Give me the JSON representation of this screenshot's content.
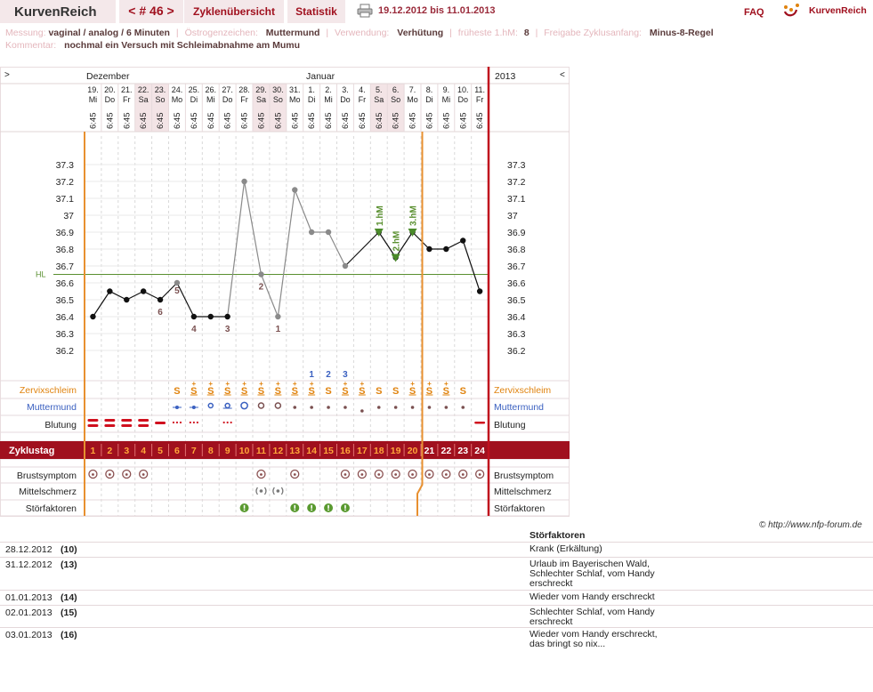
{
  "header": {
    "app_name": "KurvenReich",
    "cycle_nav": "< # 46 >",
    "tab_cycles": "Zyklenübersicht",
    "tab_stats": "Statistik",
    "date_range": "19.12.2012 bis 11.01.2013",
    "faq": "FAQ",
    "brand": "KurvenReich"
  },
  "info": {
    "measure_label": "Messung:",
    "measure_value": "vaginal / analog / 6 Minuten",
    "estrogen_label": "Östrogenzeichen:",
    "estrogen_value": "Muttermund",
    "use_label": "Verwendung:",
    "use_value": "Verhütung",
    "earliest_label": "früheste 1.hM:",
    "earliest_value": "8",
    "release_label": "Freigabe Zyklusanfang:",
    "release_value": "Minus-8-Regel",
    "comment_label": "Kommentar:",
    "comment_value": "nochmal ein Versuch mit Schleimabnahme am Mumu"
  },
  "chart_data": {
    "type": "line",
    "title": "",
    "month_labels": {
      "left_corner": ">",
      "dec": "Dezember",
      "jan": "Januar",
      "year": "2013",
      "right_corner": "<"
    },
    "days": [
      {
        "d": "19.",
        "w": "Mi"
      },
      {
        "d": "20.",
        "w": "Do"
      },
      {
        "d": "21.",
        "w": "Fr"
      },
      {
        "d": "22.",
        "w": "Sa"
      },
      {
        "d": "23.",
        "w": "So"
      },
      {
        "d": "24.",
        "w": "Mo"
      },
      {
        "d": "25.",
        "w": "Di"
      },
      {
        "d": "26.",
        "w": "Mi"
      },
      {
        "d": "27.",
        "w": "Do"
      },
      {
        "d": "28.",
        "w": "Fr"
      },
      {
        "d": "29.",
        "w": "Sa"
      },
      {
        "d": "30.",
        "w": "So"
      },
      {
        "d": "31.",
        "w": "Mo"
      },
      {
        "d": "1.",
        "w": "Di"
      },
      {
        "d": "2.",
        "w": "Mi"
      },
      {
        "d": "3.",
        "w": "Do"
      },
      {
        "d": "4.",
        "w": "Fr"
      },
      {
        "d": "5.",
        "w": "Sa"
      },
      {
        "d": "6.",
        "w": "So"
      },
      {
        "d": "7.",
        "w": "Mo"
      },
      {
        "d": "8.",
        "w": "Di"
      },
      {
        "d": "9.",
        "w": "Mi"
      },
      {
        "d": "10.",
        "w": "Do"
      },
      {
        "d": "11.",
        "w": "Fr"
      }
    ],
    "weekend_indices": [
      3,
      4,
      10,
      11,
      17,
      18
    ],
    "times": [
      "6:45",
      "6:45",
      "6:45",
      "6:45",
      "6:45",
      "6:45",
      "6:45",
      "6:45",
      "6:45",
      "6:45",
      "6:45",
      "6:45",
      "6:45",
      "6:45",
      "6:45",
      "6:45",
      "6:45",
      "6:45",
      "6:45",
      "6:45",
      "6:45",
      "6:45",
      "6:45",
      "6:45"
    ],
    "temps": [
      36.4,
      36.55,
      36.5,
      36.55,
      36.5,
      36.6,
      36.4,
      36.4,
      36.4,
      37.2,
      36.65,
      36.4,
      37.15,
      36.9,
      36.9,
      36.7,
      null,
      36.9,
      36.75,
      36.9,
      36.8,
      36.8,
      36.85,
      36.55
    ],
    "ylim": [
      36.1,
      37.4
    ],
    "yticks": [
      "37.3",
      "37.2",
      "37.1",
      "37",
      "36.9",
      "36.8",
      "36.7",
      "36.6",
      "36.5",
      "36.4",
      "36.3",
      "36.2"
    ],
    "hl_value": 36.65,
    "hl_label": "HL",
    "low_labels": [
      {
        "i": 5,
        "t": "5"
      },
      {
        "i": 4,
        "t": "6"
      },
      {
        "i": 6,
        "t": "4"
      },
      {
        "i": 8,
        "t": "3"
      },
      {
        "i": 10,
        "t": "2"
      },
      {
        "i": 11,
        "t": "1"
      }
    ],
    "high_labels": [
      {
        "i": 17,
        "t": "1.hM"
      },
      {
        "i": 18,
        "t": "2.hM"
      },
      {
        "i": 19,
        "t": "3.hM"
      }
    ],
    "count_labels": [
      {
        "i": 13,
        "t": "1"
      },
      {
        "i": 14,
        "t": "2"
      },
      {
        "i": 15,
        "t": "3"
      }
    ],
    "rows": {
      "cervix": "Zervixschleim",
      "cervix_pos": "Muttermund",
      "bleeding": "Blutung",
      "cycle_day": "Zyklustag",
      "breast": "Brustsymptom",
      "midpain": "Mittelschmerz",
      "disturb": "Störfaktoren"
    },
    "cycle_days": [
      "1",
      "2",
      "3",
      "4",
      "5",
      "6",
      "7",
      "8",
      "9",
      "10",
      "11",
      "12",
      "13",
      "14",
      "15",
      "16",
      "17",
      "18",
      "19",
      "20",
      "21",
      "22",
      "23",
      "24"
    ],
    "mucus": [
      "",
      "",
      "",
      "",
      "",
      "S",
      "S+",
      "S+",
      "S+",
      "S+",
      "S+",
      "S+",
      "S+",
      "S+",
      "S",
      "S+",
      "S+",
      "S",
      "S",
      "S+",
      "S+",
      "S+",
      "S",
      ""
    ],
    "cervix_symbols": [
      "",
      "",
      "",
      "",
      "",
      "line-dot",
      "line-dot",
      "o-small",
      "o-line",
      "o-big",
      "o-med",
      "o-med",
      "dot",
      "dot",
      "dot",
      "dot",
      "dot-low",
      "dot",
      "dot",
      "dot",
      "dot",
      "dot",
      "dot",
      ""
    ],
    "bleeding": [
      "heavy",
      "heavy",
      "heavy",
      "heavy",
      "medium",
      "dots",
      "dots",
      "",
      "dots",
      "",
      "",
      "",
      "",
      "",
      "",
      "",
      "",
      "",
      "",
      "",
      "",
      "",
      "",
      "light"
    ],
    "breast_days": [
      0,
      1,
      2,
      3,
      10,
      12,
      15,
      16,
      17,
      18,
      19,
      20,
      21,
      22,
      23
    ],
    "midpain_days": [
      10,
      11
    ],
    "disturb_days": [
      9,
      12,
      13,
      14,
      15
    ],
    "colors": {
      "accent": "#a0101e",
      "mucus": "#e0830f",
      "cervix": "#3a60c0",
      "hm": "#5a9030",
      "hl": "#5a9030",
      "low": "#7a5050"
    }
  },
  "notes_title": "Störfaktoren",
  "notes": [
    {
      "date": "28.12.2012",
      "day": "(10)",
      "text": "Krank (Erkältung)"
    },
    {
      "date": "31.12.2012",
      "day": "(13)",
      "text": "Urlaub im Bayerischen Wald, Schlechter Schlaf, vom Handy erschreckt"
    },
    {
      "date": "01.01.2013",
      "day": "(14)",
      "text": "Wieder vom Handy erschreckt"
    },
    {
      "date": "02.01.2013",
      "day": "(15)",
      "text": "Schlechter Schlaf, vom Handy erschreckt"
    },
    {
      "date": "03.01.2013",
      "day": "(16)",
      "text": "Wieder vom Handy erschreckt, das bringt so nix..."
    }
  ],
  "copyright": "© http://www.nfp-forum.de"
}
